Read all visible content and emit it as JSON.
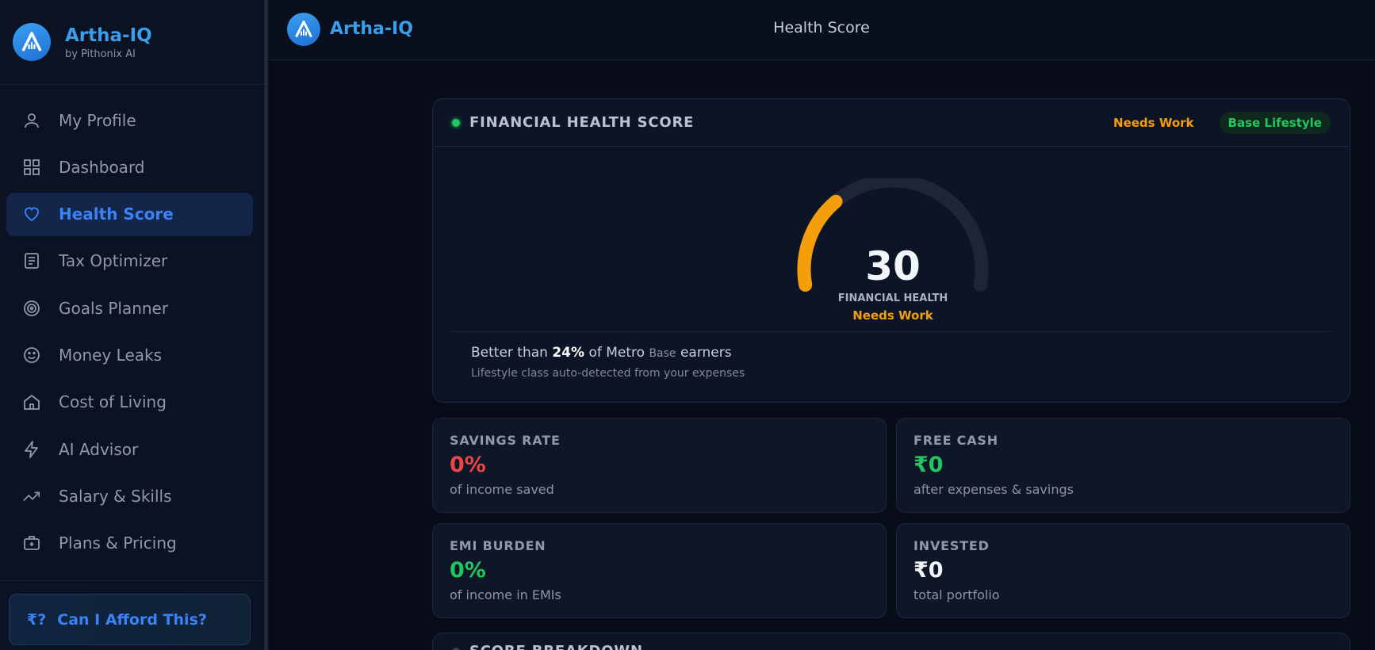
{
  "brand": {
    "name": "Artha-IQ",
    "sub": "by Pithonix AI",
    "accent": "#3b9eea"
  },
  "sidebar": {
    "items": [
      {
        "label": "My Profile",
        "icon": "user-icon",
        "active": false
      },
      {
        "label": "Dashboard",
        "icon": "grid-icon",
        "active": false
      },
      {
        "label": "Health Score",
        "icon": "heart-icon",
        "active": true
      },
      {
        "label": "Tax Optimizer",
        "icon": "document-icon",
        "active": false
      },
      {
        "label": "Goals Planner",
        "icon": "target-icon",
        "active": false
      },
      {
        "label": "Money Leaks",
        "icon": "smile-icon",
        "active": false
      },
      {
        "label": "Cost of Living",
        "icon": "home-icon",
        "active": false
      },
      {
        "label": "AI Advisor",
        "icon": "bolt-icon",
        "active": false
      },
      {
        "label": "Salary & Skills",
        "icon": "trending-up-icon",
        "active": false
      },
      {
        "label": "Plans & Pricing",
        "icon": "briefcase-icon",
        "active": false
      }
    ],
    "afford": {
      "glyph": "₹?",
      "label": "Can I Afford This?"
    }
  },
  "header": {
    "title": "Health Score"
  },
  "score_card": {
    "title": "FINANCIAL HEALTH SCORE",
    "status": "Needs Work",
    "lifestyle": "Base Lifestyle",
    "score": "30",
    "score_value": 30,
    "score_max": 100,
    "gauge_label": "FINANCIAL HEALTH",
    "gauge_status": "Needs Work",
    "percentile_pre": "Better than ",
    "percentile_value": "24%",
    "percentile_mid": " of Metro ",
    "percentile_class": "Base",
    "percentile_post": " earners",
    "auto_detect": "Lifestyle class auto-detected from your expenses",
    "colors": {
      "arc": "#f59e0b",
      "track": "#1d2536",
      "good": "#22c55e",
      "bad": "#ef4444"
    }
  },
  "stats": [
    {
      "label": "SAVINGS RATE",
      "value": "0%",
      "sub": "of income saved",
      "color": "#ef4444"
    },
    {
      "label": "FREE CASH",
      "value": "₹0",
      "sub": "after expenses & savings",
      "color": "#22c55e"
    },
    {
      "label": "EMI BURDEN",
      "value": "0%",
      "sub": "of income in EMIs",
      "color": "#22c55e"
    },
    {
      "label": "INVESTED",
      "value": "₹0",
      "sub": "total portfolio",
      "color": "#f1f5f9"
    }
  ],
  "breakdown": {
    "title": "SCORE BREAKDOWN"
  }
}
